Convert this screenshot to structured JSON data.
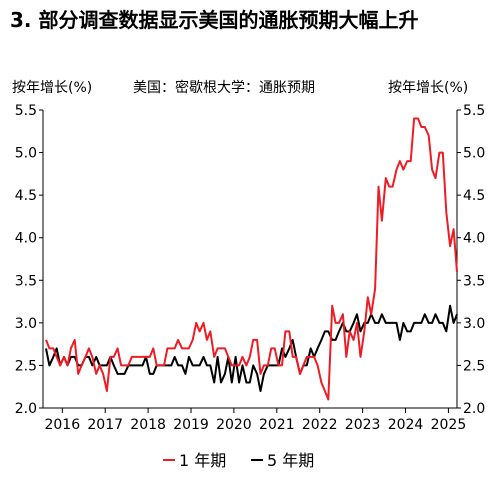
{
  "header": {
    "title": "3. 部分调查数据显示美国的通胀预期大幅上升"
  },
  "chart_data": {
    "type": "line",
    "title": "美国：密歇根大学：通胀预期",
    "left_axis_label": "按年增长(%)",
    "right_axis_label": "按年增长(%)",
    "xlim": [
      2015.55,
      2025.2
    ],
    "ylim": [
      2.0,
      5.5
    ],
    "y_ticks": [
      "2.0",
      "2.5",
      "3.0",
      "3.5",
      "4.0",
      "4.5",
      "5.0",
      "5.5"
    ],
    "x_ticks": [
      "2016",
      "2017",
      "2018",
      "2019",
      "2020",
      "2021",
      "2022",
      "2023",
      "2024",
      "2025"
    ],
    "grid": false,
    "legend_position": "bottom-center",
    "colors": {
      "series_1y": "#ee1c25",
      "series_5y": "#000000",
      "axis": "#000000"
    },
    "series": [
      {
        "name": "1 年期",
        "color": "#ee1c25",
        "points": [
          [
            2015.62,
            2.8
          ],
          [
            2015.7,
            2.7
          ],
          [
            2015.79,
            2.7
          ],
          [
            2015.87,
            2.6
          ],
          [
            2015.95,
            2.5
          ],
          [
            2016.04,
            2.6
          ],
          [
            2016.12,
            2.5
          ],
          [
            2016.2,
            2.7
          ],
          [
            2016.29,
            2.8
          ],
          [
            2016.37,
            2.4
          ],
          [
            2016.45,
            2.5
          ],
          [
            2016.54,
            2.6
          ],
          [
            2016.62,
            2.7
          ],
          [
            2016.7,
            2.6
          ],
          [
            2016.79,
            2.4
          ],
          [
            2016.87,
            2.5
          ],
          [
            2016.95,
            2.4
          ],
          [
            2017.04,
            2.2
          ],
          [
            2017.12,
            2.6
          ],
          [
            2017.2,
            2.6
          ],
          [
            2017.29,
            2.7
          ],
          [
            2017.37,
            2.5
          ],
          [
            2017.45,
            2.5
          ],
          [
            2017.54,
            2.5
          ],
          [
            2017.62,
            2.6
          ],
          [
            2017.7,
            2.6
          ],
          [
            2017.79,
            2.6
          ],
          [
            2017.87,
            2.6
          ],
          [
            2017.95,
            2.6
          ],
          [
            2018.04,
            2.6
          ],
          [
            2018.12,
            2.7
          ],
          [
            2018.2,
            2.5
          ],
          [
            2018.29,
            2.5
          ],
          [
            2018.37,
            2.5
          ],
          [
            2018.45,
            2.7
          ],
          [
            2018.54,
            2.7
          ],
          [
            2018.62,
            2.7
          ],
          [
            2018.7,
            2.8
          ],
          [
            2018.79,
            2.7
          ],
          [
            2018.87,
            2.7
          ],
          [
            2018.95,
            2.7
          ],
          [
            2019.04,
            2.8
          ],
          [
            2019.12,
            3.0
          ],
          [
            2019.2,
            2.9
          ],
          [
            2019.29,
            3.0
          ],
          [
            2019.37,
            2.8
          ],
          [
            2019.45,
            2.9
          ],
          [
            2019.54,
            2.6
          ],
          [
            2019.62,
            2.7
          ],
          [
            2019.7,
            2.7
          ],
          [
            2019.79,
            2.7
          ],
          [
            2019.87,
            2.6
          ],
          [
            2019.95,
            2.5
          ],
          [
            2020.04,
            2.5
          ],
          [
            2020.12,
            2.5
          ],
          [
            2020.2,
            2.6
          ],
          [
            2020.29,
            2.5
          ],
          [
            2020.37,
            2.6
          ],
          [
            2020.45,
            2.8
          ],
          [
            2020.54,
            2.8
          ],
          [
            2020.62,
            2.4
          ],
          [
            2020.7,
            2.5
          ],
          [
            2020.79,
            2.5
          ],
          [
            2020.87,
            2.7
          ],
          [
            2020.95,
            2.7
          ],
          [
            2021.04,
            2.5
          ],
          [
            2021.12,
            2.5
          ],
          [
            2021.2,
            2.9
          ],
          [
            2021.29,
            2.9
          ],
          [
            2021.37,
            2.6
          ],
          [
            2021.45,
            2.6
          ],
          [
            2021.54,
            2.4
          ],
          [
            2021.62,
            2.5
          ],
          [
            2021.7,
            2.6
          ],
          [
            2021.79,
            2.6
          ],
          [
            2021.87,
            2.6
          ],
          [
            2021.95,
            2.5
          ],
          [
            2022.04,
            2.3
          ],
          [
            2022.12,
            2.2
          ],
          [
            2022.2,
            2.1
          ],
          [
            2022.29,
            3.2
          ],
          [
            2022.37,
            3.0
          ],
          [
            2022.45,
            3.0
          ],
          [
            2022.54,
            3.1
          ],
          [
            2022.62,
            2.6
          ],
          [
            2022.7,
            2.9
          ],
          [
            2022.79,
            2.8
          ],
          [
            2022.87,
            3.0
          ],
          [
            2022.95,
            2.6
          ],
          [
            2023.04,
            2.9
          ],
          [
            2023.12,
            3.3
          ],
          [
            2023.2,
            3.1
          ],
          [
            2023.29,
            3.4
          ],
          [
            2023.37,
            4.6
          ],
          [
            2023.45,
            4.2
          ],
          [
            2023.54,
            4.7
          ],
          [
            2023.62,
            4.6
          ],
          [
            2023.7,
            4.6
          ],
          [
            2023.79,
            4.8
          ],
          [
            2023.87,
            4.9
          ],
          [
            2023.95,
            4.8
          ],
          [
            2024.04,
            4.9
          ],
          [
            2024.12,
            4.9
          ],
          [
            2024.2,
            5.4
          ],
          [
            2024.29,
            5.4
          ],
          [
            2024.37,
            5.3
          ],
          [
            2024.45,
            5.3
          ],
          [
            2024.54,
            5.2
          ],
          [
            2024.62,
            4.8
          ],
          [
            2024.7,
            4.7
          ],
          [
            2024.79,
            5.0
          ],
          [
            2024.87,
            5.0
          ],
          [
            2024.95,
            4.3
          ],
          [
            2025.04,
            3.9
          ],
          [
            2025.12,
            4.1
          ],
          [
            2025.2,
            3.6
          ]
        ]
      },
      {
        "name": "5 年期",
        "color": "#000000",
        "points": [
          [
            2015.62,
            2.7
          ],
          [
            2015.7,
            2.5
          ],
          [
            2015.79,
            2.6
          ],
          [
            2015.87,
            2.7
          ],
          [
            2015.95,
            2.5
          ],
          [
            2016.04,
            2.6
          ],
          [
            2016.12,
            2.5
          ],
          [
            2016.2,
            2.6
          ],
          [
            2016.29,
            2.6
          ],
          [
            2016.37,
            2.5
          ],
          [
            2016.45,
            2.5
          ],
          [
            2016.54,
            2.6
          ],
          [
            2016.62,
            2.6
          ],
          [
            2016.7,
            2.5
          ],
          [
            2016.79,
            2.6
          ],
          [
            2016.87,
            2.5
          ],
          [
            2016.95,
            2.5
          ],
          [
            2017.04,
            2.5
          ],
          [
            2017.12,
            2.6
          ],
          [
            2017.2,
            2.5
          ],
          [
            2017.29,
            2.4
          ],
          [
            2017.37,
            2.4
          ],
          [
            2017.45,
            2.4
          ],
          [
            2017.54,
            2.5
          ],
          [
            2017.62,
            2.5
          ],
          [
            2017.7,
            2.5
          ],
          [
            2017.79,
            2.5
          ],
          [
            2017.87,
            2.5
          ],
          [
            2017.95,
            2.6
          ],
          [
            2018.04,
            2.4
          ],
          [
            2018.12,
            2.4
          ],
          [
            2018.2,
            2.5
          ],
          [
            2018.29,
            2.5
          ],
          [
            2018.37,
            2.5
          ],
          [
            2018.45,
            2.5
          ],
          [
            2018.54,
            2.5
          ],
          [
            2018.62,
            2.6
          ],
          [
            2018.7,
            2.5
          ],
          [
            2018.79,
            2.5
          ],
          [
            2018.87,
            2.4
          ],
          [
            2018.95,
            2.6
          ],
          [
            2019.04,
            2.5
          ],
          [
            2019.12,
            2.5
          ],
          [
            2019.2,
            2.5
          ],
          [
            2019.29,
            2.6
          ],
          [
            2019.37,
            2.5
          ],
          [
            2019.45,
            2.5
          ],
          [
            2019.54,
            2.3
          ],
          [
            2019.62,
            2.6
          ],
          [
            2019.7,
            2.3
          ],
          [
            2019.79,
            2.4
          ],
          [
            2019.87,
            2.6
          ],
          [
            2019.95,
            2.3
          ],
          [
            2020.04,
            2.6
          ],
          [
            2020.12,
            2.3
          ],
          [
            2020.2,
            2.5
          ],
          [
            2020.29,
            2.3
          ],
          [
            2020.37,
            2.3
          ],
          [
            2020.45,
            2.5
          ],
          [
            2020.54,
            2.4
          ],
          [
            2020.62,
            2.2
          ],
          [
            2020.7,
            2.4
          ],
          [
            2020.79,
            2.5
          ],
          [
            2020.87,
            2.5
          ],
          [
            2020.95,
            2.5
          ],
          [
            2021.04,
            2.5
          ],
          [
            2021.12,
            2.7
          ],
          [
            2021.2,
            2.6
          ],
          [
            2021.29,
            2.7
          ],
          [
            2021.37,
            2.8
          ],
          [
            2021.45,
            2.6
          ],
          [
            2021.54,
            2.4
          ],
          [
            2021.62,
            2.5
          ],
          [
            2021.7,
            2.5
          ],
          [
            2021.79,
            2.7
          ],
          [
            2021.87,
            2.6
          ],
          [
            2021.95,
            2.7
          ],
          [
            2022.04,
            2.8
          ],
          [
            2022.12,
            2.9
          ],
          [
            2022.2,
            2.9
          ],
          [
            2022.29,
            2.8
          ],
          [
            2022.37,
            2.8
          ],
          [
            2022.45,
            2.9
          ],
          [
            2022.54,
            3.0
          ],
          [
            2022.62,
            2.9
          ],
          [
            2022.7,
            2.9
          ],
          [
            2022.79,
            3.0
          ],
          [
            2022.87,
            3.1
          ],
          [
            2022.95,
            2.9
          ],
          [
            2023.04,
            3.0
          ],
          [
            2023.12,
            3.0
          ],
          [
            2023.2,
            3.1
          ],
          [
            2023.29,
            3.0
          ],
          [
            2023.37,
            3.0
          ],
          [
            2023.45,
            3.1
          ],
          [
            2023.54,
            3.0
          ],
          [
            2023.62,
            3.0
          ],
          [
            2023.7,
            3.0
          ],
          [
            2023.79,
            3.0
          ],
          [
            2023.87,
            2.8
          ],
          [
            2023.95,
            3.0
          ],
          [
            2024.04,
            2.9
          ],
          [
            2024.12,
            2.9
          ],
          [
            2024.2,
            3.0
          ],
          [
            2024.29,
            3.0
          ],
          [
            2024.37,
            3.0
          ],
          [
            2024.45,
            3.1
          ],
          [
            2024.54,
            3.0
          ],
          [
            2024.62,
            3.0
          ],
          [
            2024.7,
            3.1
          ],
          [
            2024.79,
            3.0
          ],
          [
            2024.87,
            3.0
          ],
          [
            2024.95,
            2.9
          ],
          [
            2025.04,
            3.2
          ],
          [
            2025.12,
            3.0
          ],
          [
            2025.2,
            3.1
          ]
        ]
      }
    ]
  }
}
